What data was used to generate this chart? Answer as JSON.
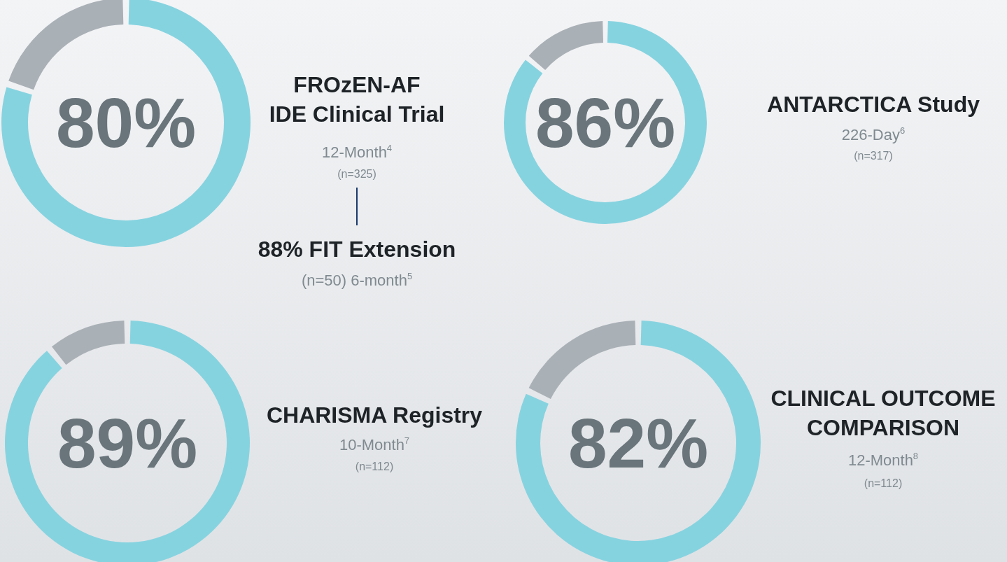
{
  "chart_data": [
    {
      "type": "donut",
      "title": "FROzEN-AF\nIDE Clinical Trial",
      "subtitle": "12-Month$^{4}$",
      "categories": [
        null,
        null
      ],
      "values": [
        80,
        20
      ],
      "colors": [
        "#86d3e0",
        "#a9b0b6"
      ],
      "value_labels": [
        "80%",
        null
      ],
      "annotations": [
        "(n=325)",
        "88% FIT Extension",
        "(n=50) 6-month$^{5}$"
      ]
    },
    {
      "type": "donut",
      "title": "ANTARCTICA Study",
      "subtitle": "226-Day$^{6}$",
      "categories": [
        null,
        null
      ],
      "values": [
        86,
        14
      ],
      "colors": [
        "#86d3e0",
        "#a9b0b6"
      ],
      "value_labels": [
        "86%",
        null
      ],
      "annotations": [
        "(n=317)"
      ]
    },
    {
      "type": "donut",
      "title": "CHARISMA Registry",
      "subtitle": "10-Month$^{7}$",
      "categories": [
        null,
        null
      ],
      "values": [
        89,
        11
      ],
      "colors": [
        "#86d3e0",
        "#a9b0b6"
      ],
      "value_labels": [
        "89%",
        null
      ],
      "annotations": [
        "(n=112)"
      ]
    },
    {
      "type": "donut",
      "title": "CLINICAL OUTCOME\nCOMPARISON",
      "subtitle": "12-Month$^{8}$",
      "categories": [
        null,
        null
      ],
      "values": [
        82,
        18
      ],
      "colors": [
        "#86d3e0",
        "#a9b0b6"
      ],
      "value_labels": [
        "82%",
        null
      ],
      "annotations": [
        "(n=112)"
      ]
    }
  ]
}
